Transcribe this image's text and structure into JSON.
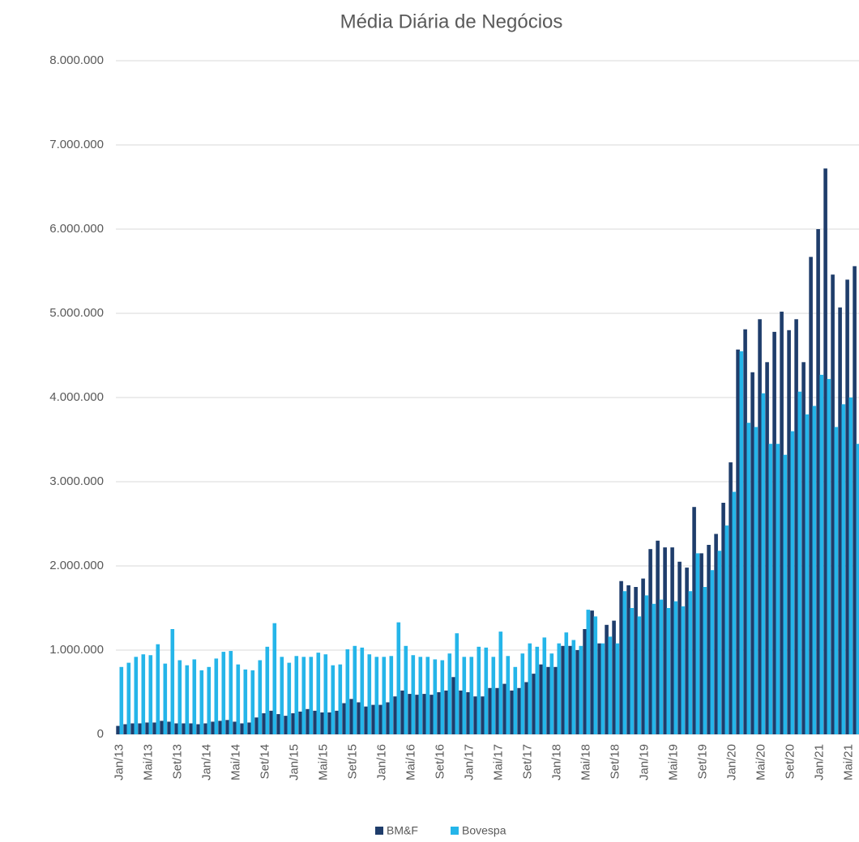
{
  "chart_data": {
    "type": "bar",
    "title": "Média Diária de Negócios",
    "categories": [
      "Jan/13",
      null,
      null,
      null,
      "Mai/13",
      null,
      null,
      null,
      "Set/13",
      null,
      null,
      null,
      "Jan/14",
      null,
      null,
      null,
      "Mai/14",
      null,
      null,
      null,
      "Set/14",
      null,
      null,
      null,
      "Jan/15",
      null,
      null,
      null,
      "Mai/15",
      null,
      null,
      null,
      "Set/15",
      null,
      null,
      null,
      "Jan/16",
      null,
      null,
      null,
      "Mai/16",
      null,
      null,
      null,
      "Set/16",
      null,
      null,
      null,
      "Jan/17",
      null,
      null,
      null,
      "Mai/17",
      null,
      null,
      null,
      "Set/17",
      null,
      null,
      null,
      "Jan/18",
      null,
      null,
      null,
      "Mai/18",
      null,
      null,
      null,
      "Set/18",
      null,
      null,
      null,
      "Jan/19",
      null,
      null,
      null,
      "Mai/19",
      null,
      null,
      null,
      "Set/19",
      null,
      null,
      null,
      "Jan/20",
      null,
      null,
      null,
      "Mai/20",
      null,
      null,
      null,
      "Set/20",
      null,
      null,
      null,
      "Jan/21",
      null,
      null,
      null,
      "Mai/21",
      null
    ],
    "series": [
      {
        "name": "BM&F",
        "color": "#1f3d6b",
        "values": [
          100000,
          120000,
          130000,
          130000,
          140000,
          140000,
          160000,
          150000,
          130000,
          130000,
          130000,
          120000,
          130000,
          150000,
          160000,
          170000,
          150000,
          130000,
          140000,
          200000,
          250000,
          280000,
          240000,
          220000,
          250000,
          270000,
          300000,
          280000,
          260000,
          260000,
          280000,
          370000,
          420000,
          380000,
          330000,
          350000,
          350000,
          380000,
          450000,
          520000,
          480000,
          470000,
          480000,
          470000,
          500000,
          520000,
          680000,
          520000,
          500000,
          450000,
          450000,
          550000,
          550000,
          600000,
          520000,
          550000,
          620000,
          720000,
          830000,
          800000,
          800000,
          1050000,
          1050000,
          1000000,
          1250000,
          1470000,
          1080000,
          1300000,
          1350000,
          1820000,
          1770000,
          1750000,
          1850000,
          2200000,
          2300000,
          2220000,
          2220000,
          2050000,
          1980000,
          2700000,
          2150000,
          2250000,
          2380000,
          2750000,
          3230000,
          4570000,
          4810000,
          4300000,
          4930000,
          4420000,
          4780000,
          5020000,
          4800000,
          4930000,
          4420000,
          5670000,
          6000000,
          6720000,
          5460000,
          5070000,
          5400000,
          5560000
        ]
      },
      {
        "name": "Bovespa",
        "color": "#25b5e9",
        "values": [
          800000,
          850000,
          920000,
          950000,
          940000,
          1070000,
          840000,
          1250000,
          880000,
          820000,
          890000,
          760000,
          800000,
          900000,
          980000,
          990000,
          830000,
          770000,
          760000,
          880000,
          1040000,
          1320000,
          920000,
          850000,
          930000,
          920000,
          920000,
          970000,
          950000,
          820000,
          830000,
          1010000,
          1050000,
          1030000,
          950000,
          920000,
          920000,
          930000,
          1330000,
          1050000,
          940000,
          920000,
          920000,
          890000,
          880000,
          960000,
          1200000,
          920000,
          920000,
          1040000,
          1030000,
          920000,
          1220000,
          930000,
          800000,
          960000,
          1080000,
          1040000,
          1150000,
          960000,
          1080000,
          1210000,
          1120000,
          1050000,
          1480000,
          1400000,
          1080000,
          1160000,
          1080000,
          1700000,
          1500000,
          1400000,
          1650000,
          1550000,
          1600000,
          1500000,
          1580000,
          1520000,
          1700000,
          2150000,
          1750000,
          1950000,
          2180000,
          2480000,
          2880000,
          4550000,
          3700000,
          3650000,
          4050000,
          3450000,
          3450000,
          3320000,
          3600000,
          4070000,
          3800000,
          3900000,
          4270000,
          4220000,
          3650000,
          3920000,
          4000000,
          3450000
        ]
      }
    ],
    "ylim": [
      0,
      8000000
    ],
    "yticks": [
      0,
      {
        "value": 1000000,
        "label": "1.000.000"
      },
      {
        "value": 2000000,
        "label": "2.000.000"
      },
      {
        "value": 3000000,
        "label": "3.000.000"
      },
      {
        "value": 4000000,
        "label": "4.000.000"
      },
      {
        "value": 5000000,
        "label": "5.000.000"
      },
      {
        "value": 6000000,
        "label": "6.000.000"
      },
      {
        "value": 7000000,
        "label": "7.000.000"
      },
      {
        "value": 8000000,
        "label": "8.000.000"
      }
    ],
    "grid": true,
    "legend": "bottom"
  }
}
